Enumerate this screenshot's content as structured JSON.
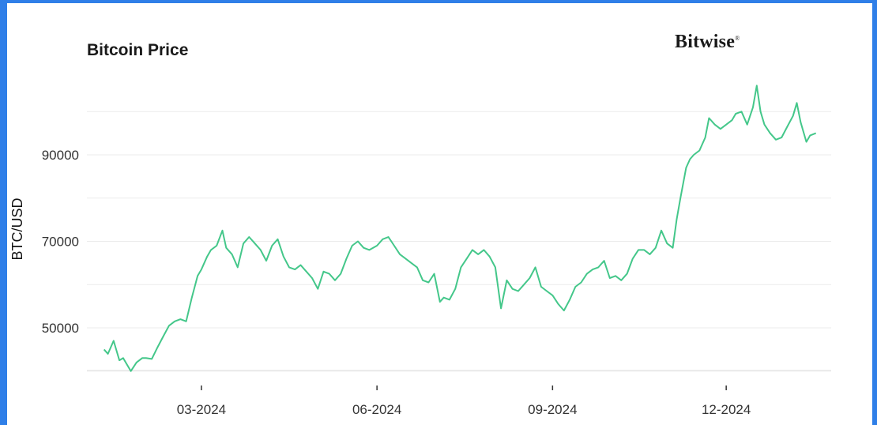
{
  "chart_data": {
    "type": "line",
    "title": "Bitcoin Price",
    "brand": "Bitwise",
    "xlabel": "",
    "ylabel": "BTC/USD",
    "y_ticks": [
      50000,
      70000,
      90000
    ],
    "y_tick_labels": [
      "50000",
      "70000",
      "90000"
    ],
    "ylim": [
      40000,
      100000
    ],
    "x_ticks": [
      "2024-03-01",
      "2024-06-01",
      "2024-09-01",
      "2024-12-01"
    ],
    "x_tick_labels": [
      "03-2024",
      "06-2024",
      "09-2024",
      "12-2024"
    ],
    "xlim": [
      "2024-01-01",
      "2025-01-25"
    ],
    "grid": true,
    "line_color": "#44c78a",
    "series": [
      {
        "x": [
          "2024-01-10",
          "2024-01-12",
          "2024-01-15",
          "2024-01-18",
          "2024-01-20",
          "2024-01-22",
          "2024-01-24",
          "2024-01-27",
          "2024-01-30",
          "2024-02-01",
          "2024-02-04",
          "2024-02-07",
          "2024-02-10",
          "2024-02-13",
          "2024-02-16",
          "2024-02-19",
          "2024-02-22",
          "2024-02-25",
          "2024-02-28",
          "2024-03-01",
          "2024-03-04",
          "2024-03-06",
          "2024-03-09",
          "2024-03-12",
          "2024-03-14",
          "2024-03-17",
          "2024-03-20",
          "2024-03-23",
          "2024-03-26",
          "2024-03-29",
          "2024-04-01",
          "2024-04-04",
          "2024-04-07",
          "2024-04-10",
          "2024-04-13",
          "2024-04-16",
          "2024-04-19",
          "2024-04-22",
          "2024-04-25",
          "2024-04-28",
          "2024-05-01",
          "2024-05-04",
          "2024-05-07",
          "2024-05-10",
          "2024-05-13",
          "2024-05-16",
          "2024-05-19",
          "2024-05-22",
          "2024-05-25",
          "2024-05-28",
          "2024-06-01",
          "2024-06-04",
          "2024-06-07",
          "2024-06-10",
          "2024-06-13",
          "2024-06-16",
          "2024-06-19",
          "2024-06-22",
          "2024-06-25",
          "2024-06-28",
          "2024-07-01",
          "2024-07-04",
          "2024-07-06",
          "2024-07-09",
          "2024-07-12",
          "2024-07-15",
          "2024-07-18",
          "2024-07-21",
          "2024-07-24",
          "2024-07-27",
          "2024-07-30",
          "2024-08-02",
          "2024-08-05",
          "2024-08-08",
          "2024-08-11",
          "2024-08-14",
          "2024-08-17",
          "2024-08-20",
          "2024-08-23",
          "2024-08-26",
          "2024-08-29",
          "2024-09-01",
          "2024-09-04",
          "2024-09-07",
          "2024-09-10",
          "2024-09-13",
          "2024-09-16",
          "2024-09-19",
          "2024-09-22",
          "2024-09-25",
          "2024-09-28",
          "2024-10-01",
          "2024-10-04",
          "2024-10-07",
          "2024-10-10",
          "2024-10-13",
          "2024-10-16",
          "2024-10-19",
          "2024-10-22",
          "2024-10-25",
          "2024-10-28",
          "2024-10-31",
          "2024-11-03",
          "2024-11-05",
          "2024-11-07",
          "2024-11-10",
          "2024-11-12",
          "2024-11-14",
          "2024-11-17",
          "2024-11-20",
          "2024-11-22",
          "2024-11-25",
          "2024-11-28",
          "2024-12-01",
          "2024-12-04",
          "2024-12-06",
          "2024-12-09",
          "2024-12-12",
          "2024-12-15",
          "2024-12-17",
          "2024-12-19",
          "2024-12-21",
          "2024-12-24",
          "2024-12-27",
          "2024-12-30",
          "2025-01-02",
          "2025-01-05",
          "2025-01-07",
          "2025-01-09",
          "2025-01-12",
          "2025-01-14",
          "2025-01-17"
        ],
        "values": [
          45000,
          44000,
          47000,
          42500,
          43000,
          41500,
          40000,
          42000,
          43000,
          43000,
          42800,
          45500,
          48000,
          50500,
          51500,
          52000,
          51500,
          57000,
          62000,
          63500,
          66500,
          68000,
          69000,
          72500,
          68500,
          67000,
          64000,
          69500,
          71000,
          69500,
          68000,
          65500,
          69000,
          70500,
          66500,
          64000,
          63500,
          64500,
          63000,
          61500,
          59000,
          63000,
          62500,
          61000,
          62500,
          66000,
          69000,
          70000,
          68500,
          68000,
          69000,
          70500,
          71000,
          69000,
          67000,
          66000,
          65000,
          64000,
          61000,
          60500,
          62500,
          56000,
          57000,
          56500,
          59000,
          64000,
          66000,
          68000,
          67000,
          68000,
          66500,
          64000,
          54500,
          61000,
          59000,
          58500,
          60000,
          61500,
          64000,
          59500,
          58500,
          57500,
          55500,
          54000,
          56500,
          59500,
          60500,
          62500,
          63500,
          64000,
          65500,
          61500,
          62000,
          61000,
          62500,
          66000,
          68000,
          68000,
          67000,
          68500,
          72500,
          69500,
          68500,
          75000,
          80000,
          87000,
          89000,
          90000,
          91000,
          94000,
          98500,
          97000,
          96000,
          97000,
          98000,
          99500,
          100000,
          97000,
          101000,
          106000,
          100000,
          97000,
          95000,
          93500,
          94000,
          96500,
          99000,
          102000,
          97500,
          93000,
          94500,
          95000
        ]
      }
    ]
  }
}
